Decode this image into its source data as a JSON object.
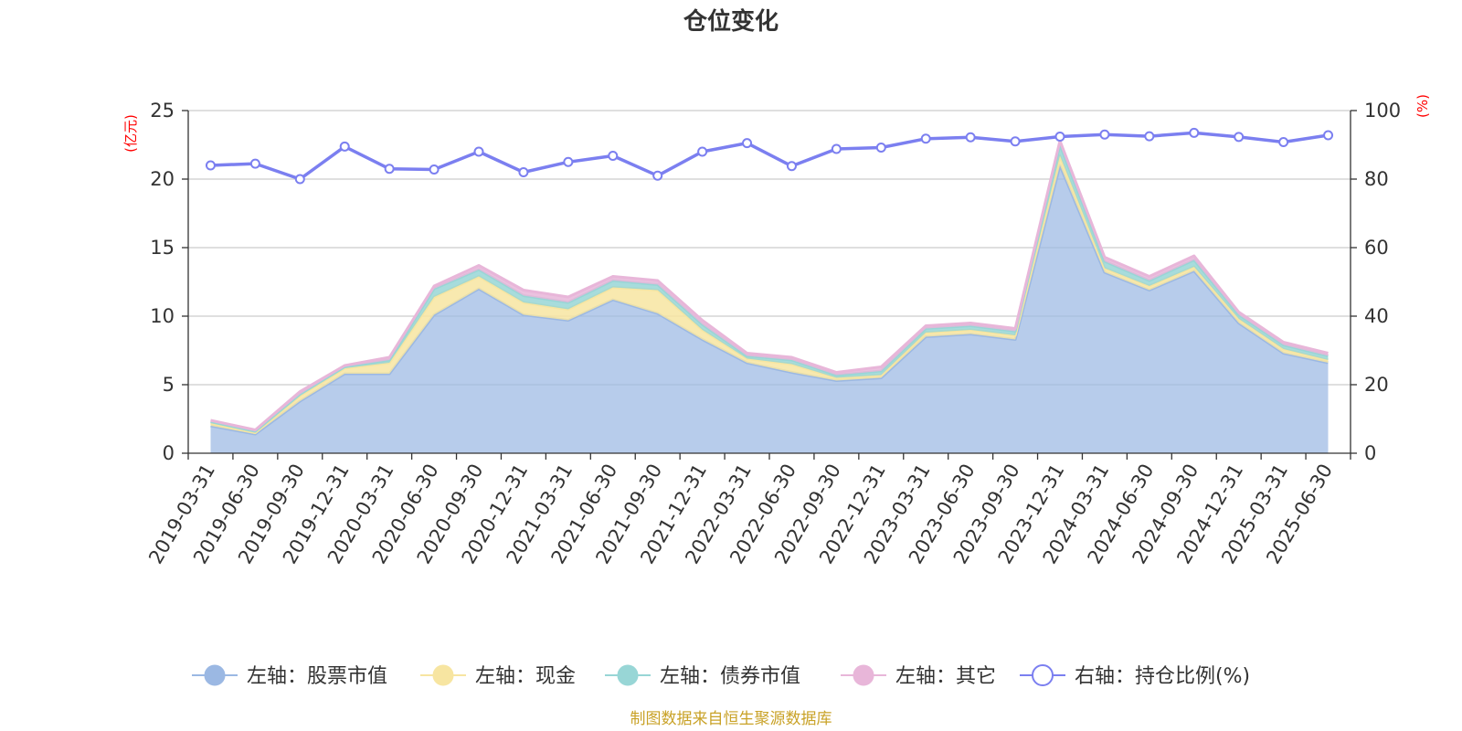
{
  "chart_data": {
    "type": "area",
    "title": "仓位变化",
    "left_unit": "(亿元)",
    "right_unit": "(%)",
    "left_axis": {
      "min": 0,
      "max": 25,
      "ticks": [
        "0",
        "5",
        "10",
        "15",
        "20",
        "25"
      ]
    },
    "right_axis": {
      "min": 0,
      "max": 100,
      "ticks": [
        "0",
        "20",
        "40",
        "60",
        "80",
        "100"
      ]
    },
    "categories": [
      "2019-03-31",
      "2019-06-30",
      "2019-09-30",
      "2019-12-31",
      "2020-03-31",
      "2020-06-30",
      "2020-09-30",
      "2020-12-31",
      "2021-03-31",
      "2021-06-30",
      "2021-09-30",
      "2021-12-31",
      "2022-03-31",
      "2022-06-30",
      "2022-09-30",
      "2022-12-31",
      "2023-03-31",
      "2023-06-30",
      "2023-09-30",
      "2023-12-31",
      "2024-03-31",
      "2024-06-30",
      "2024-09-30",
      "2024-12-31",
      "2025-03-31",
      "2025-06-30"
    ],
    "stacked_series": [
      {
        "name": "左轴：股票市值",
        "color": "#9bb8e3",
        "values": [
          2.0,
          1.4,
          3.8,
          5.8,
          5.8,
          10.1,
          12.0,
          10.1,
          9.7,
          11.2,
          10.2,
          8.3,
          6.6,
          5.9,
          5.3,
          5.5,
          8.5,
          8.7,
          8.3,
          21.0,
          13.2,
          11.9,
          13.3,
          9.5,
          7.3,
          6.6
        ]
      },
      {
        "name": "左轴：现金",
        "color": "#f7e5a1",
        "values": [
          0.2,
          0.1,
          0.4,
          0.4,
          0.8,
          1.3,
          0.9,
          0.9,
          0.8,
          0.9,
          1.7,
          0.7,
          0.3,
          0.6,
          0.2,
          0.2,
          0.3,
          0.3,
          0.3,
          0.7,
          0.3,
          0.3,
          0.3,
          0.3,
          0.3,
          0.2
        ]
      },
      {
        "name": "左轴：债券市值",
        "color": "#98d6d6",
        "values": [
          0.1,
          0.1,
          0.1,
          0.1,
          0.2,
          0.6,
          0.5,
          0.5,
          0.5,
          0.5,
          0.4,
          0.4,
          0.2,
          0.3,
          0.2,
          0.3,
          0.3,
          0.3,
          0.3,
          0.8,
          0.5,
          0.4,
          0.5,
          0.3,
          0.3,
          0.3
        ]
      },
      {
        "name": "左轴：其它",
        "color": "#e8b6d9",
        "values": [
          0.1,
          0.1,
          0.2,
          0.1,
          0.2,
          0.2,
          0.3,
          0.4,
          0.4,
          0.3,
          0.3,
          0.3,
          0.2,
          0.2,
          0.2,
          0.3,
          0.2,
          0.2,
          0.2,
          0.3,
          0.3,
          0.3,
          0.3,
          0.2,
          0.2,
          0.2
        ]
      }
    ],
    "line_series": {
      "name": "右轴：持仓比例(%)",
      "color": "#7b7ff0",
      "values": [
        84,
        84.5,
        80,
        89.5,
        83,
        82.8,
        88,
        82,
        85,
        86.8,
        81,
        88,
        90.5,
        83.8,
        88.8,
        89.2,
        91.8,
        92.2,
        91,
        92.4,
        93,
        92.5,
        93.5,
        92.3,
        90.8,
        92.8
      ]
    },
    "legend_position": "bottom"
  },
  "source": "制图数据来自恒生聚源数据库"
}
